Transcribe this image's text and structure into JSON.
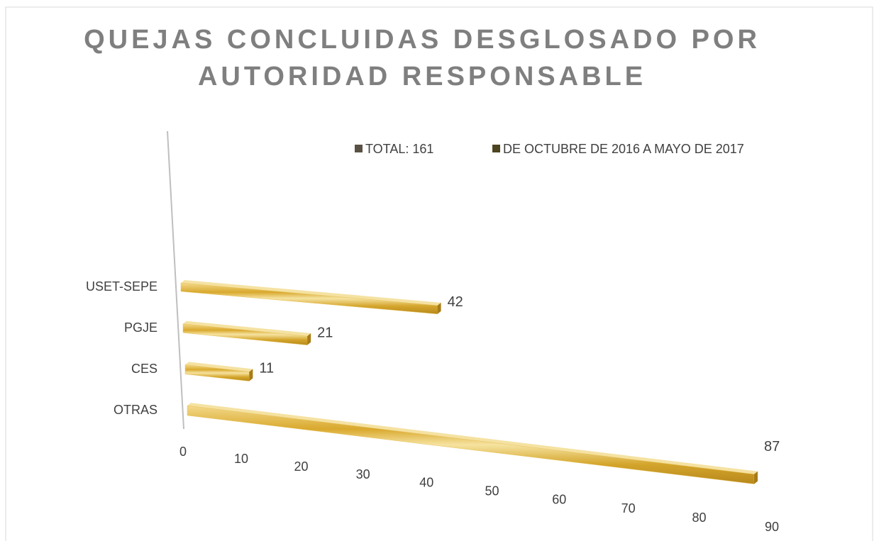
{
  "chart_data": {
    "type": "bar3d",
    "title": [
      "QUEJAS CONCLUIDAS DESGLOSADO POR",
      "AUTORIDAD RESPONSABLE"
    ],
    "legend": [
      {
        "name": "TOTAL:  161",
        "color": "#595145"
      },
      {
        "name": "DE OCTUBRE DE 2016 A MAYO DE 2017",
        "color": "#4d4420"
      }
    ],
    "categories": [
      "USET-SEPE",
      "PGJE",
      "CES",
      "OTRAS"
    ],
    "values": [
      42,
      21,
      11,
      87
    ],
    "color": "#e8c25a",
    "xlim": [
      0,
      90
    ],
    "xticks": [
      0,
      10,
      20,
      30,
      40,
      50,
      60,
      70,
      80,
      90
    ]
  }
}
